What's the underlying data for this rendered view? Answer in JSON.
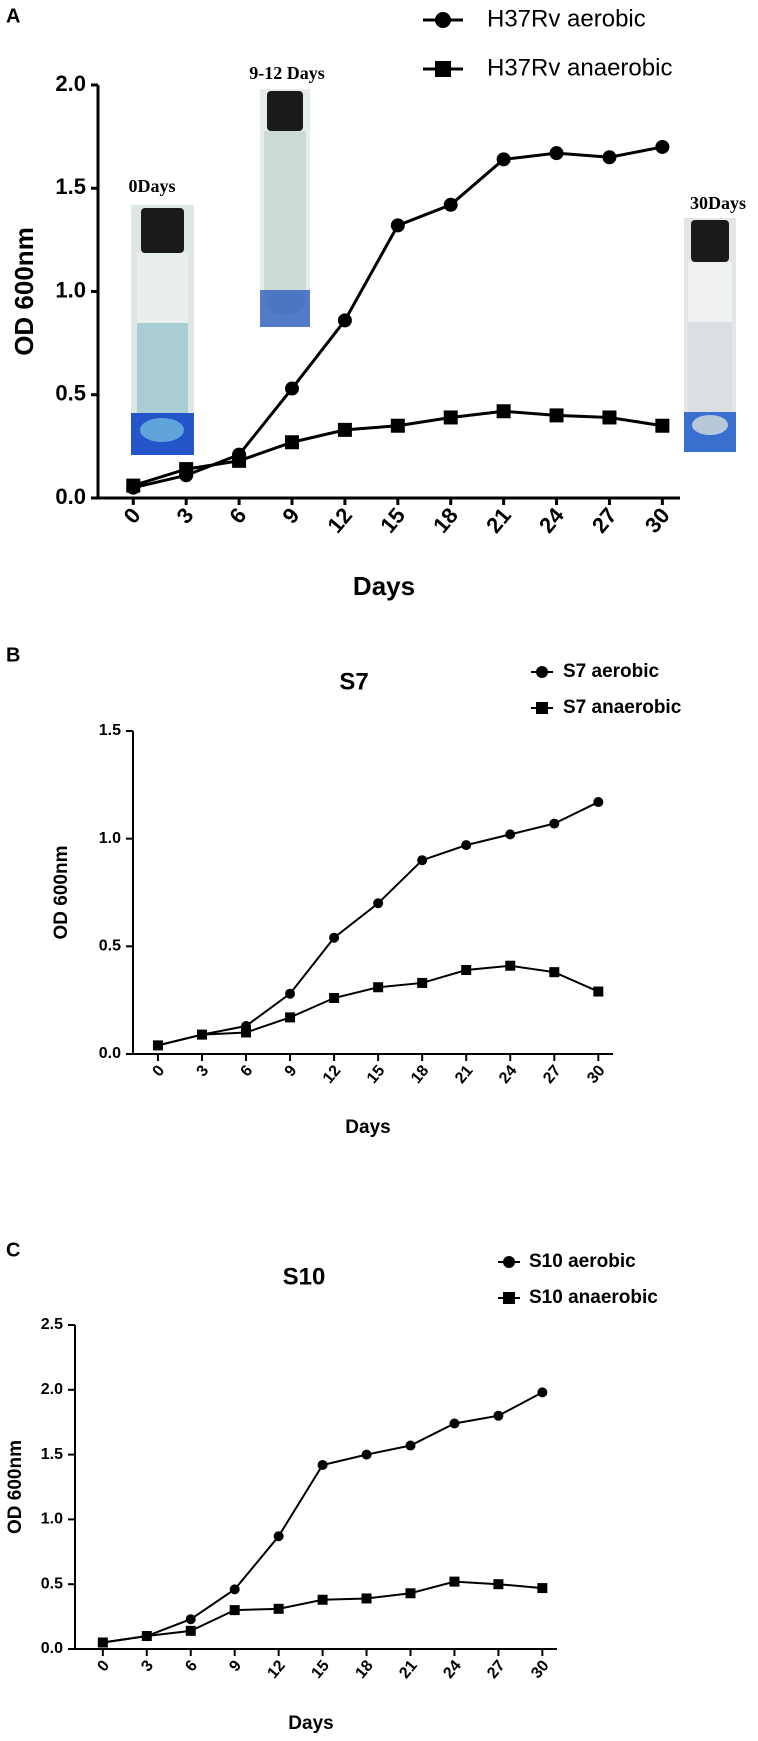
{
  "chart_data": [
    {
      "type": "line",
      "label": "A",
      "xlabel": "Days",
      "ylabel": "OD 600nm",
      "x": [
        0,
        3,
        6,
        9,
        12,
        15,
        18,
        21,
        24,
        27,
        30
      ],
      "xlim": [
        -2,
        31
      ],
      "xticks": [
        0,
        3,
        6,
        9,
        12,
        15,
        18,
        21,
        24,
        27,
        30
      ],
      "ylim": [
        0,
        2
      ],
      "yticks": [
        {
          "value": 0,
          "label": "0.0"
        },
        {
          "value": 0.5,
          "label": "0.5"
        },
        {
          "value": 1,
          "label": "1.0"
        },
        {
          "value": 1.5,
          "label": "1.5"
        },
        {
          "value": 2,
          "label": "2.0"
        }
      ],
      "series": [
        {
          "name": "H37Rv aerobic",
          "color": "#000000",
          "marker": "circle",
          "values": [
            0.05,
            0.11,
            0.21,
            0.53,
            0.86,
            1.32,
            1.42,
            1.64,
            1.67,
            1.65,
            1.7
          ]
        },
        {
          "name": "H37Rv anaerobic",
          "color": "#000000",
          "marker": "square",
          "values": [
            0.06,
            0.14,
            0.18,
            0.27,
            0.33,
            0.35,
            0.39,
            0.42,
            0.4,
            0.39,
            0.35
          ]
        }
      ],
      "annotations": [
        {
          "text": "0Days"
        },
        {
          "text": "9-12 Days"
        },
        {
          "text": "30Days"
        }
      ]
    },
    {
      "type": "line",
      "label": "B",
      "title": "S7",
      "xlabel": "Days",
      "ylabel": "OD 600nm",
      "x": [
        0,
        3,
        6,
        9,
        12,
        15,
        18,
        21,
        24,
        27,
        30
      ],
      "xlim": [
        -1.7,
        31
      ],
      "xticks": [
        0,
        3,
        6,
        9,
        12,
        15,
        18,
        21,
        24,
        27,
        30
      ],
      "ylim": [
        0,
        1.5
      ],
      "yticks": [
        {
          "value": 0,
          "label": "0.0"
        },
        {
          "value": 0.5,
          "label": "0.5"
        },
        {
          "value": 1,
          "label": "1.0"
        },
        {
          "value": 1.5,
          "label": "1.5"
        }
      ],
      "series": [
        {
          "name": "S7 aerobic",
          "color": "#000000",
          "marker": "circle",
          "values": [
            0.04,
            0.09,
            0.13,
            0.28,
            0.54,
            0.7,
            0.9,
            0.97,
            1.02,
            1.07,
            1.17
          ]
        },
        {
          "name": "S7 anaerobic",
          "color": "#000000",
          "marker": "square",
          "values": [
            0.04,
            0.09,
            0.1,
            0.17,
            0.26,
            0.31,
            0.33,
            0.39,
            0.41,
            0.38,
            0.29
          ]
        }
      ]
    },
    {
      "type": "line",
      "label": "C",
      "title": "S10",
      "xlabel": "Days",
      "ylabel": "OD 600nm",
      "x": [
        0,
        3,
        6,
        9,
        12,
        15,
        18,
        21,
        24,
        27,
        30
      ],
      "xlim": [
        -1.9,
        31
      ],
      "xticks": [
        0,
        3,
        6,
        9,
        12,
        15,
        18,
        21,
        24,
        27,
        30
      ],
      "ylim": [
        0,
        2.5
      ],
      "yticks": [
        {
          "value": 0,
          "label": "0.0"
        },
        {
          "value": 0.5,
          "label": "0.5"
        },
        {
          "value": 1,
          "label": "1.0"
        },
        {
          "value": 1.5,
          "label": "1.5"
        },
        {
          "value": 2,
          "label": "2.0"
        },
        {
          "value": 2.5,
          "label": "2.5"
        }
      ],
      "series": [
        {
          "name": "S10 aerobic",
          "color": "#000000",
          "marker": "circle",
          "values": [
            0.05,
            0.1,
            0.23,
            0.46,
            0.87,
            1.42,
            1.5,
            1.57,
            1.74,
            1.8,
            1.98
          ]
        },
        {
          "name": "S10 anaerobic",
          "color": "#000000",
          "marker": "square",
          "values": [
            0.05,
            0.1,
            0.14,
            0.3,
            0.31,
            0.38,
            0.39,
            0.43,
            0.52,
            0.5,
            0.47
          ]
        }
      ]
    }
  ]
}
